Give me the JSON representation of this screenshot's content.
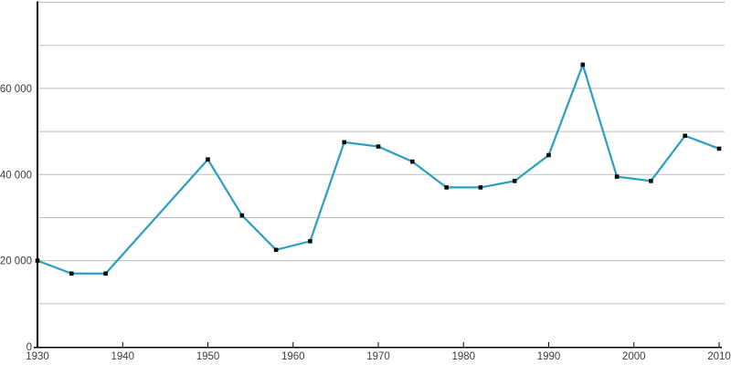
{
  "figure": {
    "kind": "line-chart",
    "background": "#ffffff"
  },
  "chart_data": {
    "type": "line",
    "title": "",
    "xlabel": "",
    "ylabel": "",
    "x": [
      1930,
      1934,
      1938,
      1950,
      1954,
      1958,
      1962,
      1966,
      1970,
      1974,
      1978,
      1982,
      1986,
      1990,
      1994,
      1998,
      2002,
      2006,
      2010
    ],
    "values": [
      20000,
      17000,
      17000,
      43500,
      30500,
      22500,
      24500,
      47500,
      46500,
      43000,
      37000,
      37000,
      38500,
      44500,
      65500,
      39500,
      38500,
      49000,
      46000
    ],
    "xlim": [
      1930,
      2010
    ],
    "ylim": [
      0,
      80000
    ],
    "x_tick_labels": [
      "1930",
      "1940",
      "1950",
      "1960",
      "1970",
      "1980",
      "1990",
      "2000",
      "2010"
    ],
    "y_tick_labels": [
      "0",
      "20 000",
      "40 000",
      "60 000"
    ],
    "y_tick_values": [
      0,
      20000,
      40000,
      60000
    ],
    "grid": {
      "orientation": "horizontal",
      "step": 10000,
      "color": "#bdbdbd"
    },
    "legend": "none",
    "series_color": "#2b9fc2",
    "marker": {
      "shape": "square",
      "color": "#0b0b0b",
      "size": 4.6
    },
    "axis_color": "#000000",
    "label_color": "#3d3d3d"
  }
}
